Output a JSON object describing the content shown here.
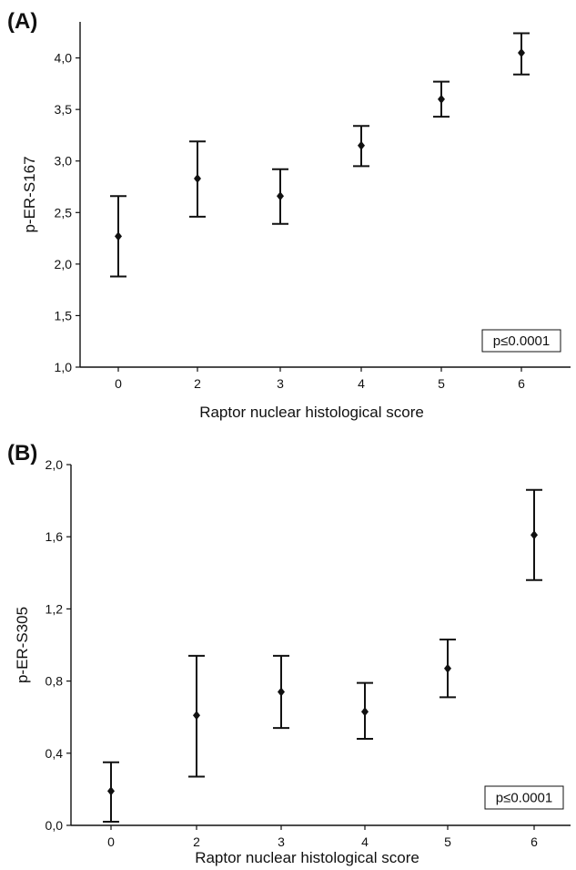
{
  "figure": {
    "panels": [
      {
        "letter": "(A)"
      },
      {
        "letter": "(B)"
      }
    ]
  },
  "chart_data": [
    {
      "type": "scatter",
      "panel": "(A)",
      "xlabel": "Raptor nuclear histological score",
      "ylabel": "p-ER-S167",
      "categories": [
        "0",
        "2",
        "3",
        "4",
        "5",
        "6"
      ],
      "yticks": [
        "1,0",
        "1,5",
        "2,0",
        "2,5",
        "3,0",
        "3,5",
        "4,0"
      ],
      "ylim": [
        1.0,
        4.35
      ],
      "annotation": "p≤0.0001",
      "series": [
        {
          "means": [
            2.27,
            2.83,
            2.66,
            3.15,
            3.6,
            4.05
          ],
          "lower": [
            1.88,
            2.46,
            2.39,
            2.95,
            3.43,
            3.84
          ],
          "upper": [
            2.66,
            3.19,
            2.92,
            3.34,
            3.77,
            4.24
          ]
        }
      ],
      "grid": false
    },
    {
      "type": "scatter",
      "panel": "(B)",
      "xlabel": "Raptor nuclear histological score",
      "ylabel": "p-ER-S305",
      "categories": [
        "0",
        "2",
        "3",
        "4",
        "5",
        "6"
      ],
      "yticks": [
        "0,0",
        "0,4",
        "0,8",
        "1,2",
        "1,6",
        "2,0"
      ],
      "ylim": [
        0.0,
        2.0
      ],
      "annotation": "p≤0.0001",
      "series": [
        {
          "means": [
            0.19,
            0.61,
            0.74,
            0.63,
            0.87,
            1.61
          ],
          "lower": [
            0.02,
            0.27,
            0.54,
            0.48,
            0.71,
            1.36
          ],
          "upper": [
            0.35,
            0.94,
            0.94,
            0.79,
            1.03,
            1.86
          ]
        }
      ],
      "grid": false
    }
  ]
}
